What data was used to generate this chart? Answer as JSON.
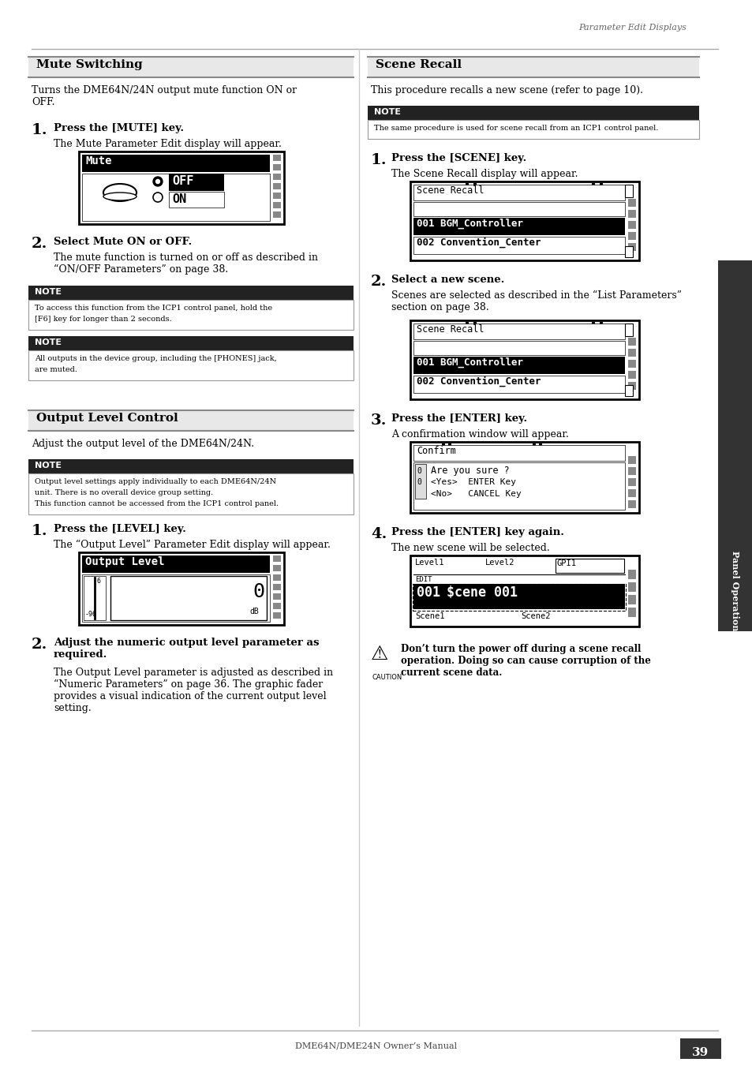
{
  "page_bg": "#ffffff",
  "page_number": "39",
  "footer_text": "DME64N/DME24N Owner’s Manual",
  "right_tab_text": "Panel Operation and Displays",
  "header_label": "Parameter Edit Displays"
}
